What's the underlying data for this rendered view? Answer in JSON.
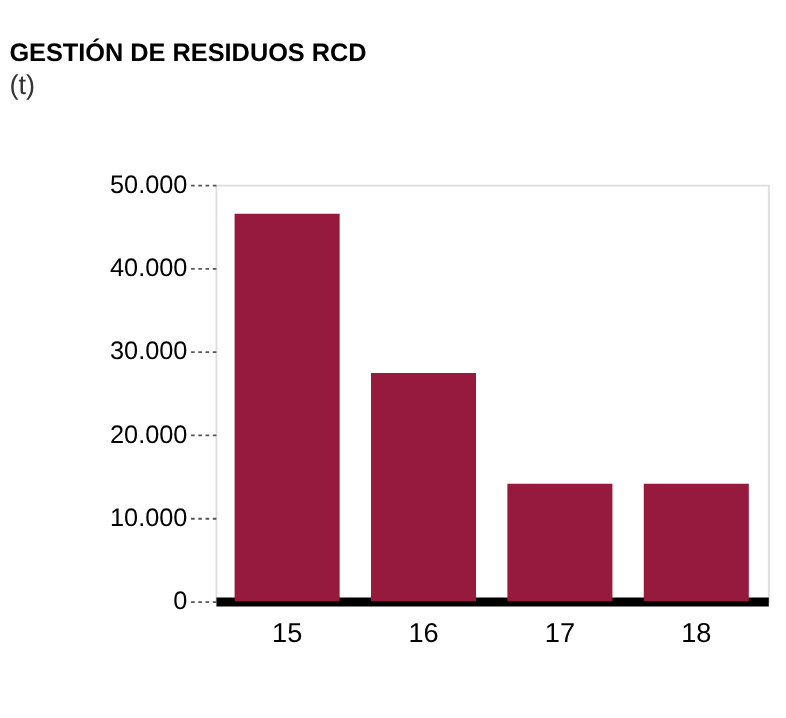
{
  "chart_data": {
    "type": "bar",
    "title": "GESTIÓN DE RESIDUOS RCD",
    "subtitle": "(t)",
    "categories": [
      "15",
      "16",
      "17",
      "18"
    ],
    "values": [
      46500,
      27400,
      14100,
      14100
    ],
    "color": "#951a3e",
    "ylim": [
      0,
      50000
    ],
    "yticks": [
      0,
      {
        "value": 10000,
        "label": "10.000"
      },
      {
        "value": 20000,
        "label": "20.000"
      },
      {
        "value": 30000,
        "label": "30.000"
      },
      {
        "value": 40000,
        "label": "40.000"
      },
      {
        "value": 50000,
        "label": "50.000"
      }
    ],
    "grid": false
  }
}
